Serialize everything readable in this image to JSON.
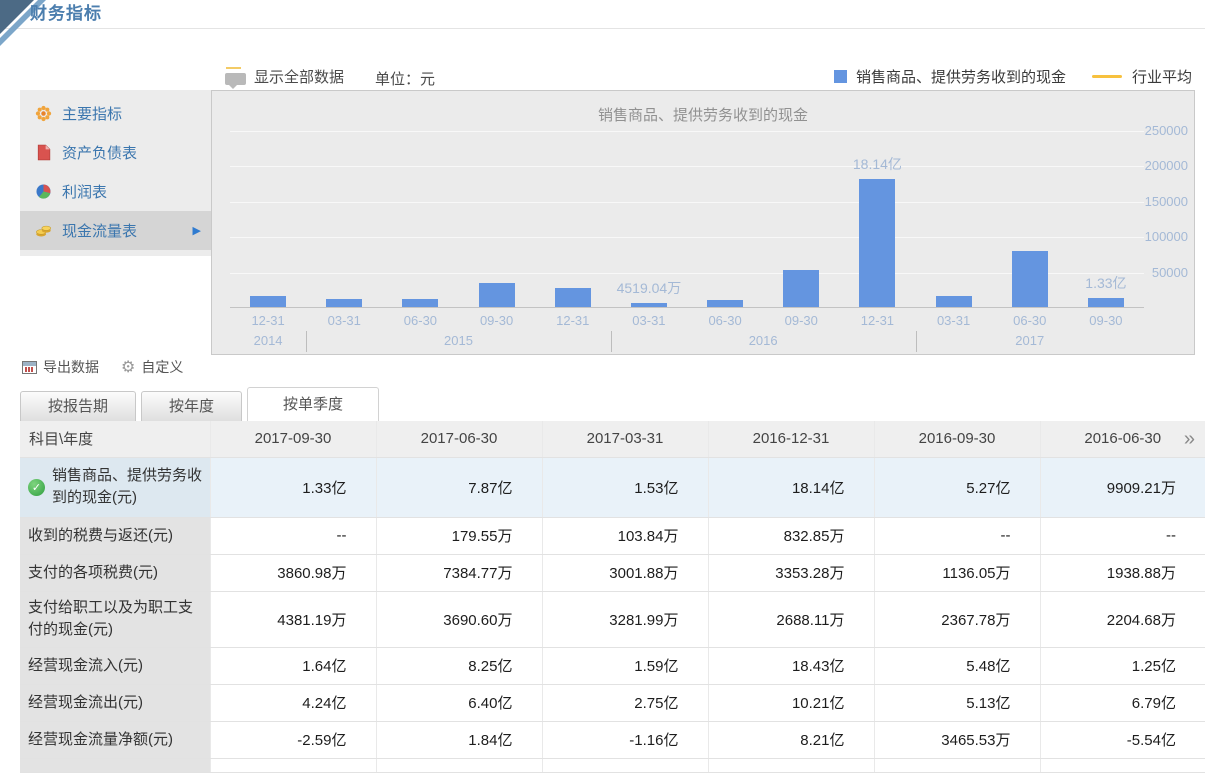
{
  "page": {
    "title": "财务指标"
  },
  "sidebar": {
    "selected_index": 3,
    "items": [
      {
        "id": "main-indicators",
        "icon": "flower",
        "label": "主要指标"
      },
      {
        "id": "balance-sheet",
        "icon": "doc",
        "label": "资产负债表"
      },
      {
        "id": "income-statement",
        "icon": "pie",
        "label": "利润表"
      },
      {
        "id": "cash-flow",
        "icon": "coins",
        "label": "现金流量表"
      }
    ]
  },
  "chart_toolbar": {
    "show_all": "显示全部数据",
    "unit": "单位：元"
  },
  "chart_data": {
    "type": "bar",
    "title": "销售商品、提供劳务收到的现金",
    "value_unit": "万元",
    "x_labels": [
      "12-31",
      "03-31",
      "06-30",
      "09-30",
      "12-31",
      "03-31",
      "06-30",
      "09-30",
      "12-31",
      "03-31",
      "06-30",
      "09-30"
    ],
    "year_groups": [
      {
        "year": "2014",
        "count": 1
      },
      {
        "year": "2015",
        "count": 4
      },
      {
        "year": "2016",
        "count": 4
      },
      {
        "year": "2017",
        "count": 3
      }
    ],
    "values": [
      15000,
      11000,
      11000,
      34000,
      27000,
      4519.04,
      9909.21,
      52700,
      181400,
      15300,
      78700,
      13300
    ],
    "point_labels": {
      "5": "4519.04万",
      "8": "18.14亿",
      "11": "1.33亿"
    },
    "y_ticks": [
      50000,
      100000,
      150000,
      200000,
      250000
    ],
    "ylim": [
      0,
      265000
    ],
    "grid": true,
    "legend_position": "top-right",
    "bar_color": "#6495e0",
    "industry_color": "#f7c13e",
    "legend": [
      {
        "label": "销售商品、提供劳务收到的现金",
        "color": "#6495e0",
        "type": "bar"
      },
      {
        "label": "行业平均",
        "color": "#f7c13e",
        "type": "line"
      }
    ]
  },
  "table_toolbar": {
    "export": "导出数据",
    "customize": "自定义"
  },
  "tabs": [
    {
      "id": "report-period",
      "label": "按报告期",
      "active": false
    },
    {
      "id": "yearly",
      "label": "按年度",
      "active": false
    },
    {
      "id": "single-quarter",
      "label": "按单季度",
      "active": true
    }
  ],
  "table": {
    "corner": "科目\\年度",
    "columns": [
      "2017-09-30",
      "2017-06-30",
      "2017-03-31",
      "2016-12-31",
      "2016-09-30",
      "2016-06-30"
    ],
    "more_icon": "»",
    "rows": [
      {
        "label": "销售商品、提供劳务收到的现金(元)",
        "checked": true,
        "selected": true,
        "values": [
          "1.33亿",
          "7.87亿",
          "1.53亿",
          "18.14亿",
          "5.27亿",
          "9909.21万"
        ]
      },
      {
        "label": "收到的税费与返还(元)",
        "values": [
          "--",
          "179.55万",
          "103.84万",
          "832.85万",
          "--",
          "--"
        ]
      },
      {
        "label": "支付的各项税费(元)",
        "values": [
          "3860.98万",
          "7384.77万",
          "3001.88万",
          "3353.28万",
          "1136.05万",
          "1938.88万"
        ]
      },
      {
        "label": "支付给职工以及为职工支付的现金(元)",
        "values": [
          "4381.19万",
          "3690.60万",
          "3281.99万",
          "2688.11万",
          "2367.78万",
          "2204.68万"
        ]
      },
      {
        "label": "经营现金流入(元)",
        "values": [
          "1.64亿",
          "8.25亿",
          "1.59亿",
          "18.43亿",
          "5.48亿",
          "1.25亿"
        ]
      },
      {
        "label": "经营现金流出(元)",
        "values": [
          "4.24亿",
          "6.40亿",
          "2.75亿",
          "10.21亿",
          "5.13亿",
          "6.79亿"
        ]
      },
      {
        "label": "经营现金流量净额(元)",
        "values": [
          "-2.59亿",
          "1.84亿",
          "-1.16亿",
          "8.21亿",
          "3465.53万",
          "-5.54亿"
        ]
      }
    ]
  }
}
